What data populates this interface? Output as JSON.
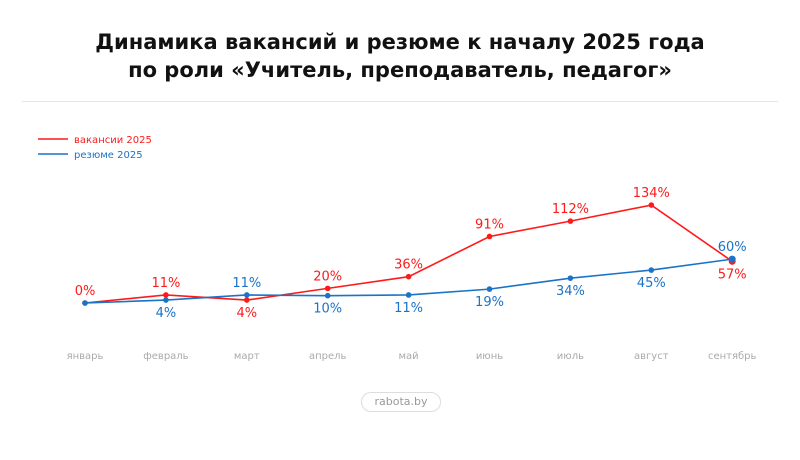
{
  "title_line1": "Динамика вакансий и резюме к началу 2025 года",
  "title_line2": "по роли «Учитель, преподаватель, педагог»",
  "footer": "rabota.by",
  "chart_data": {
    "type": "line",
    "categories": [
      "январь",
      "февраль",
      "март",
      "апрель",
      "май",
      "июнь",
      "июль",
      "август",
      "сентябрь"
    ],
    "series": [
      {
        "name": "вакансии 2025",
        "color": "#ff1a1a",
        "values": [
          0,
          11,
          4,
          20,
          36,
          91,
          112,
          134,
          57
        ],
        "labels": [
          "0%",
          "11%",
          "4%",
          "20%",
          "36%",
          "91%",
          "112%",
          "134%",
          "57%"
        ]
      },
      {
        "name": "резюме 2025",
        "color": "#1a73c8",
        "values": [
          0,
          4,
          11,
          10,
          11,
          19,
          34,
          45,
          60
        ],
        "labels": [
          "",
          "4%",
          "11%",
          "10%",
          "11%",
          "19%",
          "34%",
          "45%",
          "60%"
        ]
      }
    ],
    "legend_position": "top-left",
    "grid": false,
    "units": "%"
  }
}
